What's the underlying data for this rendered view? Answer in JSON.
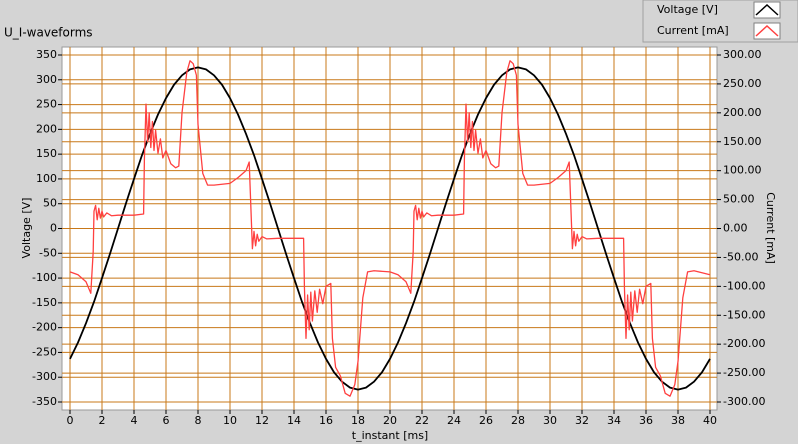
{
  "chart_data": {
    "type": "line",
    "title": "U_I-waveforms",
    "x_label": "t_instant [ms]",
    "y_label": "Voltage [V]",
    "y2_label": "Current [mA]",
    "xlim": [
      0,
      40
    ],
    "xticks": [
      0,
      2,
      4,
      6,
      8,
      10,
      12,
      14,
      16,
      18,
      20,
      22,
      24,
      26,
      28,
      30,
      32,
      34,
      36,
      38,
      40
    ],
    "ylim": [
      -350,
      350
    ],
    "yticks": [
      -350,
      -300,
      -250,
      -200,
      -150,
      -100,
      -50,
      0,
      50,
      100,
      150,
      200,
      250,
      300,
      350
    ],
    "y2lim": [
      -300,
      300
    ],
    "y2ticks": [
      {
        "value": -300,
        "label": "-300.00"
      },
      {
        "value": -250,
        "label": "-250.00"
      },
      {
        "value": -200,
        "label": "-200.00"
      },
      {
        "value": -150,
        "label": "-150.00"
      },
      {
        "value": -100,
        "label": "-100.00"
      },
      {
        "value": -50,
        "label": "-50.00"
      },
      {
        "value": 0,
        "label": "0.00"
      },
      {
        "value": 50,
        "label": "50.00"
      },
      {
        "value": 100,
        "label": "100.00"
      },
      {
        "value": 150,
        "label": "150.00"
      },
      {
        "value": 200,
        "label": "200.00"
      },
      {
        "value": 250,
        "label": "250.00"
      },
      {
        "value": 300,
        "label": "300.00"
      }
    ],
    "grid": true,
    "grid_color": "#c87819",
    "legend": "top-right",
    "series": [
      {
        "name": "Voltage [V]",
        "color": "#000000",
        "x": [
          0,
          0.5,
          1,
          1.5,
          2,
          2.5,
          3,
          3.5,
          4,
          4.5,
          5,
          5.5,
          6,
          6.5,
          7,
          7.5,
          8,
          8.5,
          9,
          9.5,
          10,
          10.5,
          11,
          11.5,
          12,
          12.5,
          13,
          13.5,
          14,
          14.5,
          15,
          15.5,
          16,
          16.5,
          17,
          17.5,
          18,
          18.5,
          19,
          19.5,
          20,
          20.5,
          21,
          21.5,
          22,
          22.5,
          23,
          23.5,
          24,
          24.5,
          25,
          25.5,
          26,
          26.5,
          27,
          27.5,
          28,
          28.5,
          29,
          29.5,
          30,
          30.5,
          31,
          31.5,
          32,
          32.5,
          33,
          33.5,
          34,
          34.5,
          35,
          35.5,
          36,
          36.5,
          37,
          37.5,
          38,
          38.5,
          39,
          39.5,
          40
        ],
        "values": [
          -263,
          -230,
          -191,
          -148,
          -100,
          -51,
          0,
          51,
          100,
          148,
          191,
          230,
          263,
          290,
          309,
          321,
          325,
          321,
          309,
          290,
          263,
          230,
          191,
          148,
          100,
          51,
          0,
          -51,
          -100,
          -148,
          -191,
          -230,
          -263,
          -290,
          -309,
          -321,
          -325,
          -321,
          -309,
          -290,
          -263,
          -230,
          -191,
          -148,
          -100,
          -51,
          0,
          51,
          100,
          148,
          191,
          230,
          263,
          290,
          309,
          321,
          325,
          321,
          309,
          290,
          263,
          230,
          191,
          148,
          100,
          51,
          0,
          -51,
          -100,
          -148,
          -191,
          -230,
          -263,
          -290,
          -309,
          -321,
          -325,
          -321,
          -309,
          -290,
          -263
        ]
      },
      {
        "name": "Current [mA]",
        "color": "#ff4040",
        "axis": "y2",
        "x": [
          0,
          0.5,
          1,
          1.3,
          1.45,
          1.5,
          1.6,
          1.7,
          1.8,
          1.9,
          2,
          2.1,
          2.3,
          2.6,
          3,
          4,
          4.6,
          4.65,
          4.75,
          4.85,
          4.95,
          5.05,
          5.15,
          5.25,
          5.35,
          5.5,
          5.65,
          5.8,
          6,
          6.3,
          6.6,
          6.8,
          7,
          7.3,
          7.5,
          7.7,
          7.9,
          8,
          8.3,
          8.6,
          9,
          10,
          10.5,
          11,
          11.2,
          11.3,
          11.4,
          11.5,
          11.6,
          11.7,
          11.8,
          12,
          12.3,
          13,
          14.6,
          14.65,
          14.75,
          14.85,
          14.95,
          15.05,
          15.15,
          15.3,
          15.45,
          15.6,
          15.8,
          16,
          16.3,
          16.4,
          16.6,
          16.9,
          17.2,
          17.5,
          17.8,
          18,
          18.3,
          18.6,
          19,
          20,
          20.5,
          21,
          21.3,
          21.45,
          21.5,
          21.6,
          21.7,
          21.8,
          21.9,
          22,
          22.1,
          22.3,
          22.6,
          23,
          24,
          24.6,
          24.65,
          24.75,
          24.85,
          24.95,
          25.05,
          25.15,
          25.25,
          25.35,
          25.5,
          25.65,
          25.8,
          26,
          26.3,
          26.6,
          26.8,
          27,
          27.3,
          27.5,
          27.7,
          27.9,
          28,
          28.3,
          28.6,
          29,
          30,
          30.5,
          31,
          31.2,
          31.3,
          31.4,
          31.5,
          31.6,
          31.7,
          31.8,
          32,
          32.3,
          33,
          34.6,
          34.65,
          34.75,
          34.85,
          34.95,
          35.05,
          35.15,
          35.3,
          35.45,
          35.6,
          35.8,
          36,
          36.3,
          36.4,
          36.6,
          36.9,
          37.2,
          37.5,
          37.8,
          38,
          38.3,
          38.6,
          39,
          40
        ],
        "values": [
          -75,
          -80,
          -92,
          -112,
          -40,
          30,
          40,
          15,
          35,
          18,
          30,
          20,
          27,
          22,
          23,
          23,
          25,
          120,
          215,
          150,
          200,
          140,
          185,
          135,
          170,
          130,
          155,
          122,
          135,
          112,
          105,
          108,
          200,
          270,
          290,
          285,
          265,
          180,
          95,
          75,
          75,
          78,
          88,
          100,
          115,
          40,
          -35,
          -5,
          -30,
          -10,
          -22,
          -14,
          -18,
          -17,
          -17,
          -100,
          -190,
          -115,
          -175,
          -110,
          -160,
          -108,
          -145,
          -105,
          -130,
          -100,
          -95,
          -190,
          -240,
          -255,
          -285,
          -290,
          -270,
          -230,
          -120,
          -75,
          -73,
          -75,
          -80,
          -92,
          -112,
          -40,
          30,
          40,
          15,
          35,
          18,
          30,
          20,
          27,
          22,
          23,
          23,
          25,
          120,
          215,
          150,
          200,
          140,
          185,
          135,
          170,
          130,
          155,
          122,
          135,
          112,
          105,
          108,
          200,
          270,
          290,
          285,
          265,
          180,
          95,
          75,
          75,
          78,
          88,
          100,
          115,
          40,
          -35,
          -5,
          -30,
          -10,
          -22,
          -14,
          -18,
          -17,
          -17,
          -100,
          -190,
          -115,
          -175,
          -110,
          -160,
          -108,
          -145,
          -105,
          -130,
          -100,
          -95,
          -190,
          -240,
          -255,
          -285,
          -290,
          -270,
          -230,
          -120,
          -75,
          -73,
          -80
        ]
      }
    ]
  }
}
